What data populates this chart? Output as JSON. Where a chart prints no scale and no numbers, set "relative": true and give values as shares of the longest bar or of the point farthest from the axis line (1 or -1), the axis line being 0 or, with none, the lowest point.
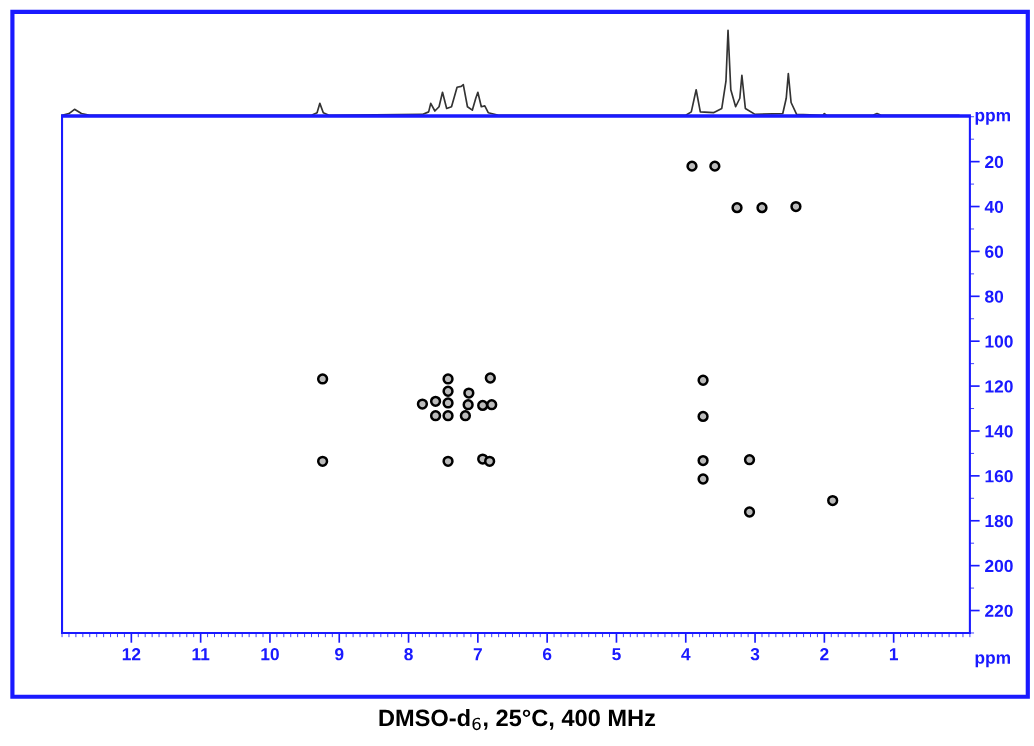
{
  "chart_data": [
    {
      "type": "line",
      "relative": true,
      "tick_labels": false,
      "xlim": [
        13.0,
        -0.1
      ],
      "grid": false,
      "legend": false,
      "marker": "none",
      "line_style": "solid",
      "series": [
        {
          "color": "#333333",
          "x": [
            13.0,
            12.9,
            12.82,
            12.72,
            12.6,
            9.4,
            9.32,
            9.28,
            9.23,
            9.15,
            7.8,
            7.71,
            7.68,
            7.62,
            7.56,
            7.51,
            7.45,
            7.38,
            7.3,
            7.24,
            7.21,
            7.15,
            7.08,
            7.03,
            7.0,
            6.95,
            6.9,
            6.85,
            6.7,
            4.0,
            3.92,
            3.85,
            3.79,
            3.6,
            3.48,
            3.42,
            3.39,
            3.35,
            3.28,
            3.22,
            3.19,
            3.14,
            3.0,
            2.6,
            2.55,
            2.52,
            2.48,
            2.4,
            2.02,
            2.0,
            1.97,
            1.3,
            1.24,
            1.18,
            0.06
          ],
          "values": [
            0,
            0.02,
            0.07,
            0.02,
            0,
            0,
            0.03,
            0.14,
            0.03,
            0,
            0.01,
            0.04,
            0.14,
            0.05,
            0.1,
            0.27,
            0.08,
            0.1,
            0.33,
            0.34,
            0.36,
            0.1,
            0.06,
            0.2,
            0.27,
            0.1,
            0.11,
            0.03,
            0,
            0,
            0.04,
            0.3,
            0.04,
            0.03,
            0.08,
            0.4,
            1.0,
            0.3,
            0.1,
            0.2,
            0.47,
            0.08,
            0.01,
            0.02,
            0.2,
            0.49,
            0.15,
            0.01,
            0,
            0.02,
            0,
            0,
            0.02,
            0,
            0
          ]
        }
      ]
    },
    {
      "type": "scatter",
      "xlabel": "ppm",
      "ylabel": "ppm",
      "xlim": [
        13.0,
        -0.1
      ],
      "xticks": [
        12,
        11,
        10,
        9,
        8,
        7,
        6,
        5,
        4,
        3,
        2,
        1
      ],
      "ylim": [
        230,
        0
      ],
      "yticks": [
        20,
        40,
        60,
        80,
        100,
        120,
        140,
        160,
        180,
        200,
        220
      ],
      "grid": false,
      "legend": false,
      "marker": "circle",
      "annotations": [
        "DMSO-d$_{6}$, 25°C, 400 MHz"
      ],
      "series": [
        {
          "color": "#000000",
          "x": [
            3.91,
            3.58,
            3.26,
            2.9,
            2.41,
            3.75,
            3.75,
            3.75,
            3.08,
            3.75,
            1.88,
            3.08,
            9.24,
            9.24,
            7.43,
            7.43,
            7.43,
            7.61,
            7.8,
            7.61,
            7.43,
            7.13,
            7.14,
            7.18,
            6.93,
            6.8,
            6.82,
            7.43,
            6.93,
            6.83
          ],
          "values": [
            22,
            22,
            40.5,
            40.5,
            40,
            117.4,
            133.5,
            153.2,
            152.8,
            161.4,
            171,
            176.1,
            116.8,
            153.5,
            116.8,
            122.3,
            127.5,
            126.8,
            128,
            133.2,
            133.2,
            123.1,
            128.3,
            133.2,
            128.6,
            128.3,
            116.4,
            153.5,
            152.5,
            153.5
          ]
        }
      ]
    }
  ]
}
